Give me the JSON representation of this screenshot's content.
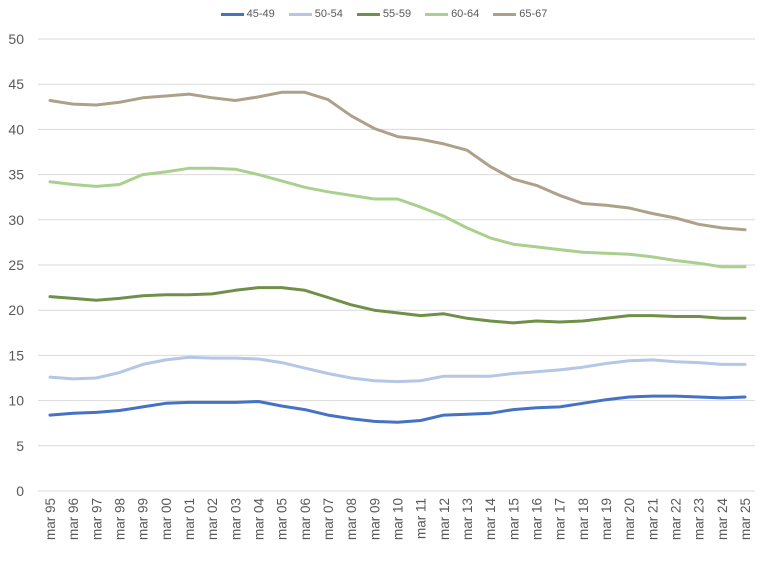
{
  "chart_data": {
    "type": "line",
    "title": "",
    "xlabel": "",
    "ylabel": "",
    "ylim": [
      0,
      50
    ],
    "yticks": [
      0,
      5,
      10,
      15,
      20,
      25,
      30,
      35,
      40,
      45,
      50
    ],
    "grid": true,
    "legend_position": "top",
    "categories": [
      "mar 95",
      "mar 96",
      "mar 97",
      "mar 98",
      "mar 99",
      "mar 00",
      "mar 01",
      "mar 02",
      "mar 03",
      "mar 04",
      "mar 05",
      "mar 06",
      "mar 07",
      "mar 08",
      "mar 09",
      "mar 10",
      "mar 11",
      "mar 12",
      "mar 13",
      "mar 14",
      "mar 15",
      "mar 16",
      "mar 17",
      "mar 18",
      "mar 19",
      "mar 20",
      "mar 21",
      "mar 22",
      "mar 23",
      "mar 24",
      "mar 25"
    ],
    "series": [
      {
        "name": "45-49",
        "color": "#4472c4",
        "values": [
          8.4,
          8.6,
          8.7,
          8.9,
          9.3,
          9.7,
          9.8,
          9.8,
          9.8,
          9.9,
          9.4,
          9.0,
          8.4,
          8.0,
          7.7,
          7.6,
          7.8,
          8.4,
          8.5,
          8.6,
          9.0,
          9.2,
          9.3,
          9.7,
          10.1,
          10.4,
          10.5,
          10.5,
          10.4,
          10.3,
          10.4
        ]
      },
      {
        "name": "50-54",
        "color": "#b4c7e7",
        "values": [
          12.6,
          12.4,
          12.5,
          13.1,
          14.0,
          14.5,
          14.8,
          14.7,
          14.7,
          14.6,
          14.2,
          13.6,
          13.0,
          12.5,
          12.2,
          12.1,
          12.2,
          12.7,
          12.7,
          12.7,
          13.0,
          13.2,
          13.4,
          13.7,
          14.1,
          14.4,
          14.5,
          14.3,
          14.2,
          14.0,
          14.0
        ]
      },
      {
        "name": "55-59",
        "color": "#70904a",
        "values": [
          21.5,
          21.3,
          21.1,
          21.3,
          21.6,
          21.7,
          21.7,
          21.8,
          22.2,
          22.5,
          22.5,
          22.2,
          21.4,
          20.6,
          20.0,
          19.7,
          19.4,
          19.6,
          19.1,
          18.8,
          18.6,
          18.8,
          18.7,
          18.8,
          19.1,
          19.4,
          19.4,
          19.3,
          19.3,
          19.1,
          19.1
        ]
      },
      {
        "name": "60-64",
        "color": "#a9d08e",
        "values": [
          34.2,
          33.9,
          33.7,
          33.9,
          35.0,
          35.3,
          35.7,
          35.7,
          35.6,
          35.0,
          34.3,
          33.6,
          33.1,
          32.7,
          32.3,
          32.3,
          31.4,
          30.4,
          29.1,
          28.0,
          27.3,
          27.0,
          26.7,
          26.4,
          26.3,
          26.2,
          25.9,
          25.5,
          25.2,
          24.8,
          24.8
        ]
      },
      {
        "name": "65-67",
        "color": "#aea189",
        "values": [
          43.2,
          42.8,
          42.7,
          43.0,
          43.5,
          43.7,
          43.9,
          43.5,
          43.2,
          43.6,
          44.1,
          44.1,
          43.3,
          41.5,
          40.1,
          39.2,
          38.9,
          38.4,
          37.7,
          35.9,
          34.5,
          33.8,
          32.7,
          31.8,
          31.6,
          31.3,
          30.7,
          30.2,
          29.5,
          29.1,
          28.9
        ]
      }
    ]
  },
  "legend": {
    "items": [
      {
        "label": "45-49",
        "color": "#4472c4"
      },
      {
        "label": "50-54",
        "color": "#b4c7e7"
      },
      {
        "label": "55-59",
        "color": "#70904a"
      },
      {
        "label": "60-64",
        "color": "#a9d08e"
      },
      {
        "label": "65-67",
        "color": "#aea189"
      }
    ]
  }
}
